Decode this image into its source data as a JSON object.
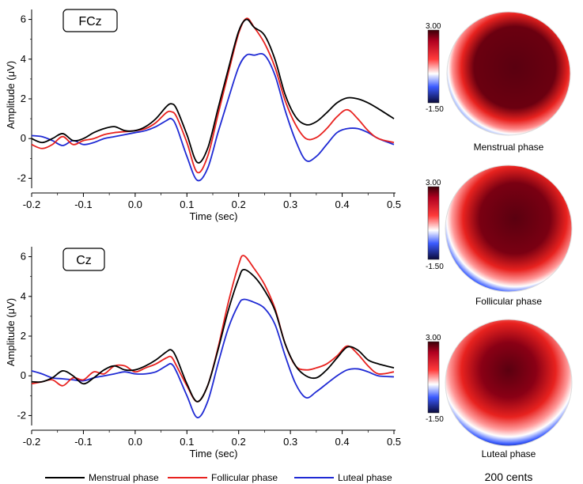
{
  "chart_data": [
    {
      "type": "line",
      "panel_label": "FCz",
      "xlabel": "Time (sec)",
      "ylabel": "Amplitude (μV)",
      "xlim": [
        -0.2,
        0.5
      ],
      "ylim": [
        -2.5,
        6.5
      ],
      "xticks": [
        "-0.2",
        "-0.1",
        "0.0",
        "0.1",
        "0.2",
        "0.3",
        "0.4",
        "0.5"
      ],
      "yticks": [
        "-2",
        "0",
        "2",
        "4",
        "6"
      ],
      "x": [
        -0.2,
        -0.18,
        -0.16,
        -0.14,
        -0.12,
        -0.1,
        -0.08,
        -0.06,
        -0.04,
        -0.02,
        0.0,
        0.02,
        0.04,
        0.06,
        0.07,
        0.08,
        0.1,
        0.12,
        0.14,
        0.16,
        0.18,
        0.2,
        0.215,
        0.23,
        0.25,
        0.27,
        0.29,
        0.31,
        0.33,
        0.35,
        0.37,
        0.39,
        0.41,
        0.43,
        0.45,
        0.47,
        0.5
      ],
      "series": [
        {
          "name": "Menstrual phase",
          "color": "#000000",
          "values": [
            0.0,
            -0.2,
            0.0,
            0.25,
            -0.1,
            0.0,
            0.3,
            0.5,
            0.6,
            0.4,
            0.4,
            0.6,
            1.0,
            1.6,
            1.75,
            1.5,
            0.2,
            -1.2,
            -0.5,
            1.5,
            3.5,
            5.4,
            6.0,
            5.6,
            5.2,
            4.0,
            2.2,
            1.1,
            0.7,
            0.85,
            1.3,
            1.8,
            2.05,
            2.0,
            1.8,
            1.5,
            1.0
          ]
        },
        {
          "name": "Follicular phase",
          "color": "#e8221f",
          "values": [
            -0.3,
            -0.5,
            -0.3,
            0.1,
            -0.3,
            -0.1,
            0.0,
            0.2,
            0.3,
            0.35,
            0.4,
            0.5,
            0.8,
            1.3,
            1.35,
            1.1,
            -0.2,
            -1.7,
            -0.9,
            1.2,
            3.3,
            5.3,
            6.05,
            5.6,
            4.8,
            3.6,
            1.9,
            0.7,
            0.0,
            0.05,
            0.5,
            1.1,
            1.45,
            1.0,
            0.4,
            0.0,
            -0.2
          ]
        },
        {
          "name": "Luteal phase",
          "color": "#1f2ad4",
          "values": [
            0.15,
            0.1,
            -0.1,
            -0.35,
            -0.1,
            -0.3,
            -0.2,
            0.0,
            0.1,
            0.2,
            0.3,
            0.4,
            0.6,
            0.9,
            1.0,
            0.6,
            -0.9,
            -2.1,
            -1.5,
            0.3,
            2.0,
            3.6,
            4.2,
            4.2,
            4.2,
            3.2,
            1.4,
            -0.1,
            -1.1,
            -0.9,
            -0.3,
            0.3,
            0.5,
            0.5,
            0.3,
            0.0,
            -0.3
          ]
        }
      ]
    },
    {
      "type": "line",
      "panel_label": "Cz",
      "xlabel": "Time (sec)",
      "ylabel": "Amplitude (μV)",
      "xlim": [
        -0.2,
        0.5
      ],
      "ylim": [
        -2.5,
        6.5
      ],
      "xticks": [
        "-0.2",
        "-0.1",
        "0.0",
        "0.1",
        "0.2",
        "0.3",
        "0.4",
        "0.5"
      ],
      "yticks": [
        "-2",
        "0",
        "2",
        "4",
        "6"
      ],
      "x": [
        -0.2,
        -0.18,
        -0.16,
        -0.14,
        -0.12,
        -0.1,
        -0.08,
        -0.06,
        -0.04,
        -0.02,
        0.0,
        0.02,
        0.04,
        0.06,
        0.07,
        0.08,
        0.1,
        0.12,
        0.14,
        0.16,
        0.18,
        0.2,
        0.21,
        0.23,
        0.25,
        0.27,
        0.29,
        0.31,
        0.33,
        0.35,
        0.37,
        0.39,
        0.41,
        0.43,
        0.45,
        0.47,
        0.5
      ],
      "series": [
        {
          "name": "Menstrual phase",
          "color": "#000000",
          "values": [
            -0.3,
            -0.3,
            -0.1,
            0.25,
            0.0,
            -0.4,
            -0.1,
            0.3,
            0.5,
            0.3,
            0.3,
            0.5,
            0.8,
            1.2,
            1.3,
            0.9,
            -0.4,
            -1.3,
            -0.5,
            1.3,
            3.3,
            4.9,
            5.35,
            5.0,
            4.3,
            3.3,
            1.6,
            0.5,
            0.0,
            -0.1,
            0.3,
            0.9,
            1.45,
            1.3,
            0.8,
            0.6,
            0.4
          ]
        },
        {
          "name": "Follicular phase",
          "color": "#e8221f",
          "values": [
            -0.4,
            -0.3,
            -0.2,
            -0.5,
            -0.1,
            -0.2,
            0.2,
            0.1,
            0.5,
            0.5,
            0.2,
            0.4,
            0.6,
            0.9,
            0.95,
            0.5,
            -0.5,
            -1.3,
            -0.5,
            1.4,
            3.7,
            5.6,
            6.05,
            5.4,
            4.6,
            3.4,
            1.6,
            0.5,
            0.3,
            0.4,
            0.6,
            1.0,
            1.5,
            1.1,
            0.5,
            0.1,
            0.2
          ]
        },
        {
          "name": "Luteal phase",
          "color": "#1f2ad4",
          "values": [
            0.25,
            0.1,
            -0.1,
            -0.15,
            -0.2,
            -0.25,
            -0.1,
            0.0,
            0.1,
            0.2,
            0.1,
            0.1,
            0.2,
            0.5,
            0.6,
            0.2,
            -1.0,
            -2.1,
            -1.3,
            0.6,
            2.4,
            3.6,
            3.85,
            3.7,
            3.4,
            2.6,
            1.0,
            -0.4,
            -1.1,
            -0.8,
            -0.4,
            0.0,
            0.3,
            0.35,
            0.2,
            0.0,
            -0.05
          ]
        }
      ]
    }
  ],
  "topomaps": [
    {
      "caption": "Menstrual phase",
      "scale_max": "3.00",
      "scale_min": "-1.50"
    },
    {
      "caption": "Follicular phase",
      "scale_max": "3.00",
      "scale_min": "-1.50"
    },
    {
      "caption": "Luteal phase",
      "scale_max": "3.00",
      "scale_min": "-1.50"
    }
  ],
  "legend": [
    {
      "label": "Menstrual phase",
      "color": "#000000"
    },
    {
      "label": "Follicular phase",
      "color": "#e8221f"
    },
    {
      "label": "Luteal phase",
      "color": "#1f2ad4"
    }
  ],
  "scale_note": "200 cents"
}
